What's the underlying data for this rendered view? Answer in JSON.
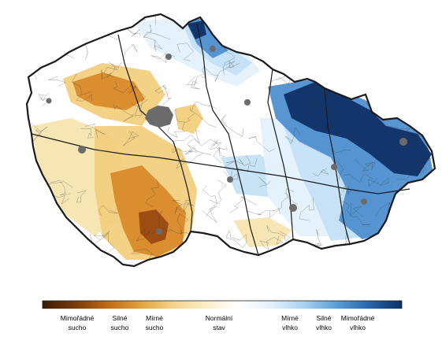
{
  "legend": {
    "gradient_colors": [
      "#3a1a08",
      "#7a3a0a",
      "#c06a14",
      "#e2a23c",
      "#f3d38a",
      "#fbeec8",
      "#ffffff",
      "#e2f0fb",
      "#a9d2f0",
      "#5a9dd6",
      "#2866a9",
      "#0e2f66"
    ],
    "labels": [
      {
        "line1": "Mimořádné",
        "line2": "sucho"
      },
      {
        "line1": "Silné",
        "line2": "sucho"
      },
      {
        "line1": "Mírné",
        "line2": "sucho"
      },
      {
        "line1": "Normální",
        "line2": "stav"
      },
      {
        "line1": "Mírné",
        "line2": "vlhko"
      },
      {
        "line1": "Silné",
        "line2": "vlhko"
      },
      {
        "line1": "Mimořádné",
        "line2": "vlhko"
      }
    ]
  },
  "map": {
    "colors": {
      "border": "#1a1a1a",
      "river": "#3a3a3a",
      "city": "#6b6b6b",
      "dry_extreme": "#9a4a10",
      "dry_strong": "#d98a2a",
      "dry_mild": "#f2cf7e",
      "dry_light": "#f8e4b0",
      "wet_mild": "#c5e0f5",
      "wet_light": "#e4f1fb",
      "wet_strong": "#4f8fcf",
      "wet_extreme": "#0f2f66"
    }
  }
}
